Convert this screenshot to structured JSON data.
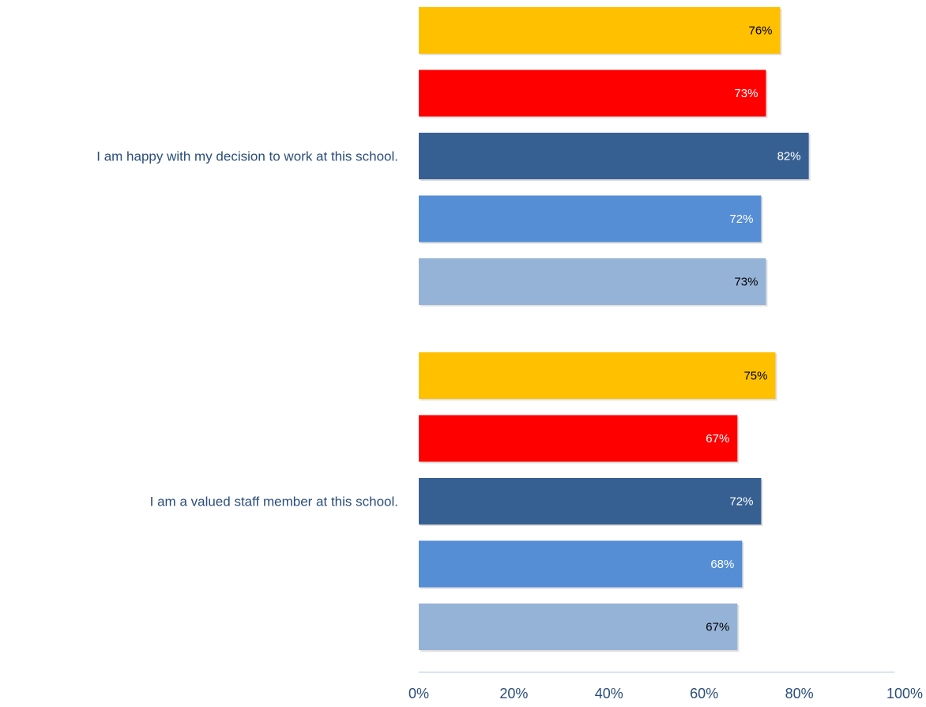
{
  "chart_data": {
    "type": "bar",
    "orientation": "horizontal",
    "categories": [
      "I am happy with my decision to work at this school.",
      "I am a valued staff member at this school."
    ],
    "series": [
      {
        "values": [
          76,
          75
        ],
        "color": "#ffc000",
        "label_color": "#000000"
      },
      {
        "values": [
          73,
          67
        ],
        "color": "#ff0000",
        "label_color": "#ffffff"
      },
      {
        "values": [
          82,
          72
        ],
        "color": "#376092",
        "label_color": "#ffffff"
      },
      {
        "values": [
          72,
          68
        ],
        "color": "#558ed5",
        "label_color": "#ffffff"
      },
      {
        "values": [
          73,
          67
        ],
        "color": "#95b3d7",
        "label_color": "#000000"
      }
    ],
    "data_label_suffix": "%",
    "xlim": [
      0,
      100
    ],
    "x_ticks": [
      "0%",
      "20%",
      "40%",
      "60%",
      "80%",
      "100%"
    ],
    "grid": false,
    "legend": "none"
  }
}
